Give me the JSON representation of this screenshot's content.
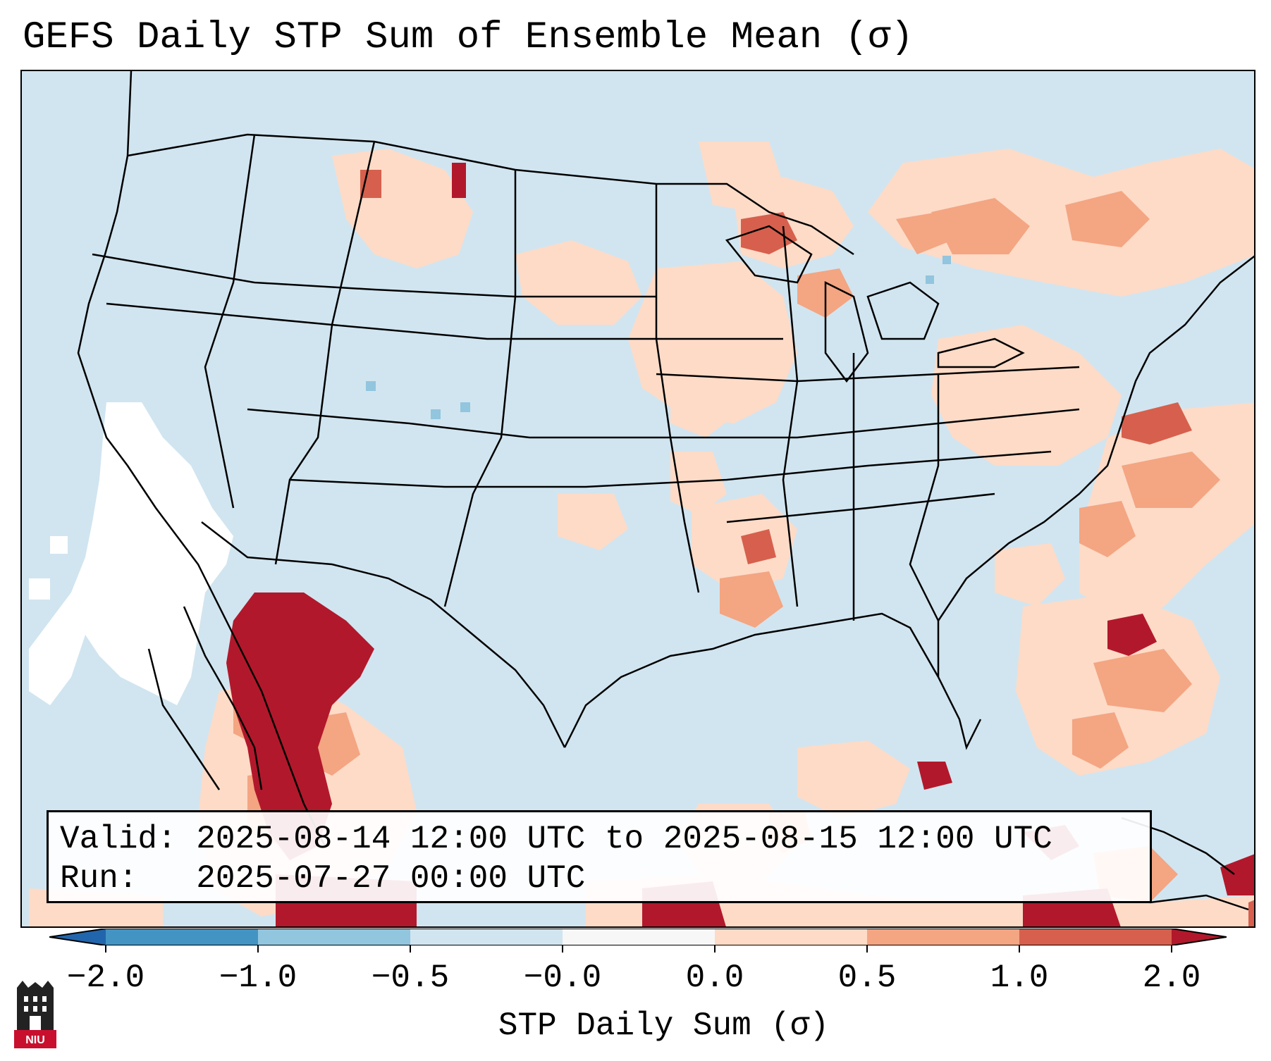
{
  "title": "GEFS Daily STP Sum of Ensemble Mean (σ)",
  "info": {
    "valid_label": "Valid:",
    "valid_value": "2025-08-14 12:00 UTC to 2025-08-15 12:00 UTC",
    "run_label": "Run:",
    "run_value": "2025-07-27 00:00 UTC"
  },
  "colorbar": {
    "title": "STP Daily Sum (σ)",
    "ticks": [
      "−2.0",
      "−1.0",
      "−0.5",
      "−0.0",
      "0.0",
      "0.5",
      "1.0",
      "2.0"
    ],
    "colors": {
      "under": "#2166ac",
      "bin_neg2_neg1": "#4393c3",
      "bin_neg1_neg05": "#92c5de",
      "bin_neg05_0": "#d1e5f0",
      "bin_zero": "#f7f7f7",
      "bin_0_05": "#fddbc7",
      "bin_05_1": "#f4a582",
      "bin_1_2": "#d6604d",
      "over": "#b2182b"
    }
  },
  "map": {
    "background_color": "#d1e5f0",
    "no_data_color": "#ffffff",
    "border_color": "#000000"
  },
  "logo": {
    "text": "NIU",
    "color": "#c8102e"
  }
}
